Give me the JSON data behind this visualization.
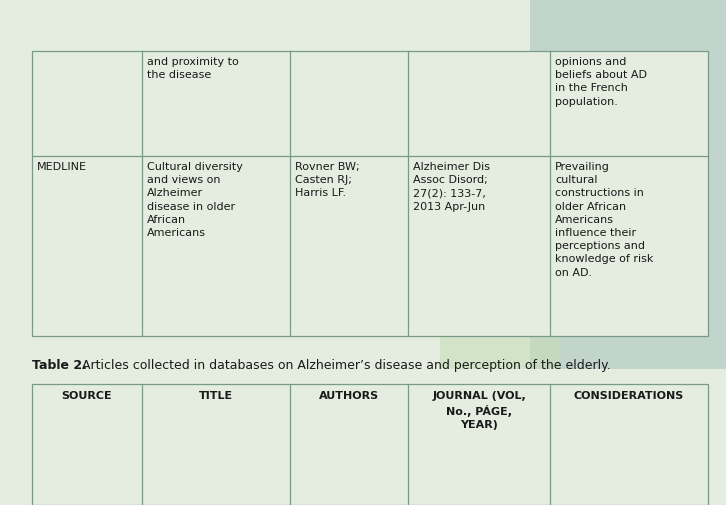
{
  "bg_color_main": "#e4ede0",
  "bg_color_right": "#c2d5cc",
  "cell_border_color": "#7a9a88",
  "caption_bold": "Table 2.",
  "caption_normal": " Articles collected in databases on Alzheimer’s disease and perception of the elderly.",
  "caption_fontsize": 9.0,
  "header_labels": [
    "SOURCE",
    "TITLE",
    "AUTHORS",
    "JOURNAL (VOL,\nNo., PÁGE,\nYEAR)",
    "CONSIDERATIONS"
  ],
  "header_fontsize": 8.0,
  "row1_col1": "",
  "row1_col2": "and proximity to\nthe disease",
  "row1_col3": "",
  "row1_col4": "",
  "row1_col5": "opinions and\nbeliefs about AD\nin the French\npopulation.",
  "row2_col1": "MEDLINE",
  "row2_col2": "Cultural diversity\nand views on\nAlzheimer\ndisease in older\nAfrican\nAmericans",
  "row2_col3": "Rovner BW;\nCasten RJ;\nHarris LF.",
  "row2_col4": "Alzheimer Dis\nAssoc Disord;\n27(2): 133-7,\n2013 Apr-Jun",
  "row2_col5": "Prevailing\ncultural\nconstructions in\nolder African\nAmericans\ninfluence their\nperceptions and\nknowledge of risk\non AD.",
  "cell_fontsize": 8.0,
  "overlay_teal": "#8ab0a4",
  "overlay_green": "#bdd4a8",
  "overlay_light": "#c8ddb8"
}
